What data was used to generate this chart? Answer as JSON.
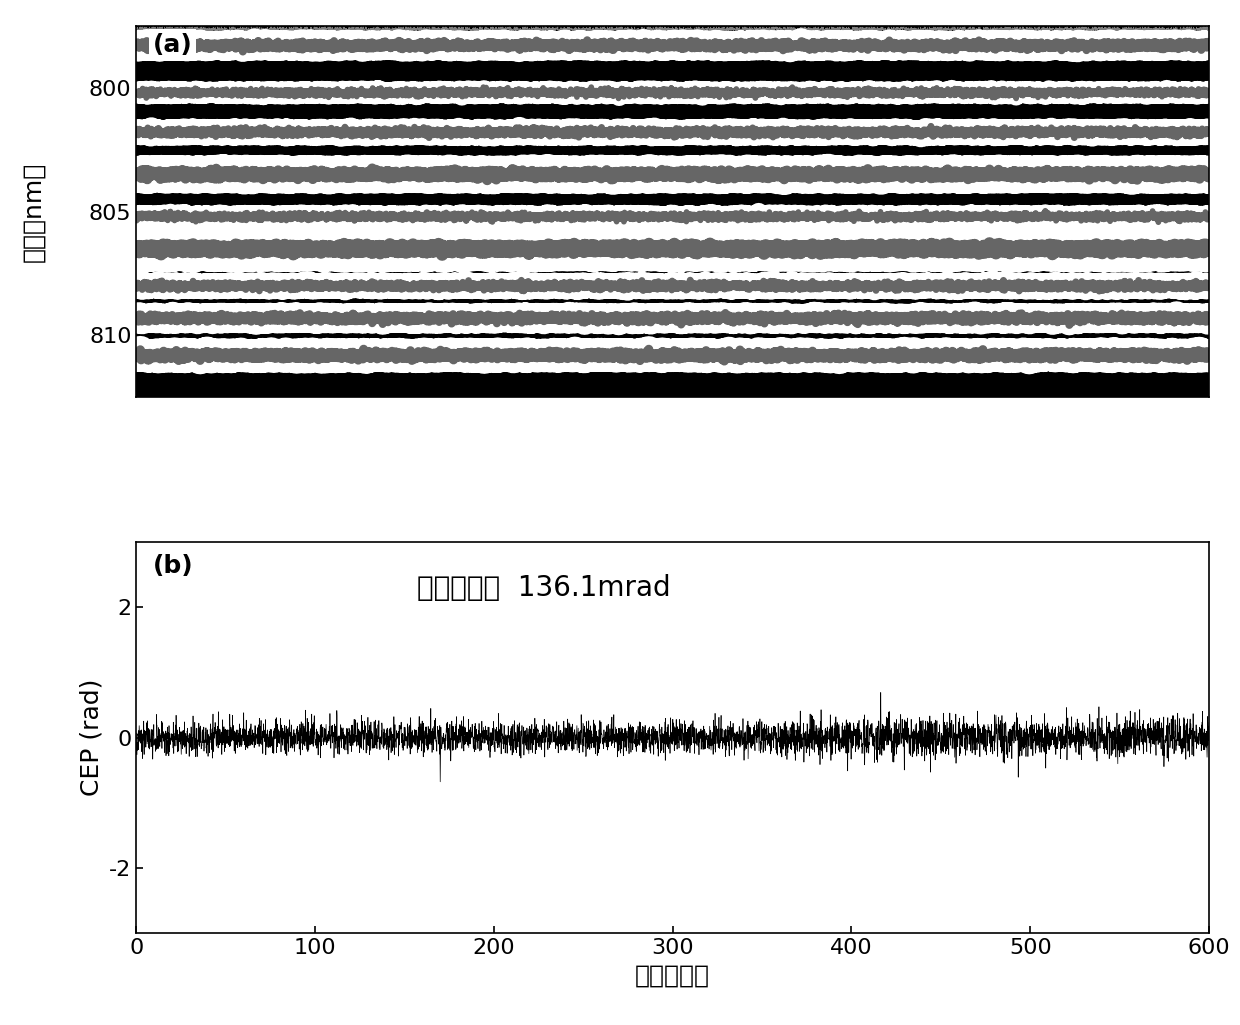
{
  "panel_a_label": "(a)",
  "panel_b_label": "(b)",
  "ylabel_a": "波长（nm）",
  "ylabel_b": "CEP (rad)",
  "xlabel": "时间（秒）",
  "annotation_b": "均方差値：  136.1mrad",
  "xlim": [
    0,
    600
  ],
  "ylim_a": [
    797.5,
    812.5
  ],
  "yticks_a": [
    800,
    805,
    810
  ],
  "ylim_b": [
    -3.0,
    3.0
  ],
  "yticks_b": [
    -2,
    0,
    2
  ],
  "xticks": [
    0,
    100,
    200,
    300,
    400,
    500,
    600
  ],
  "bg_color_a": "#000000",
  "fringe_centers": [
    798.3,
    800.2,
    801.8,
    803.5,
    805.2,
    806.5,
    808.0,
    809.3,
    810.8
  ],
  "fringe_widths": [
    0.35,
    0.25,
    0.3,
    0.45,
    0.25,
    0.55,
    0.3,
    0.35,
    0.4
  ],
  "n_time_points": 5000,
  "font_size_label": 18,
  "font_size_tick": 16,
  "font_size_annotation": 20,
  "font_size_panel": 18
}
